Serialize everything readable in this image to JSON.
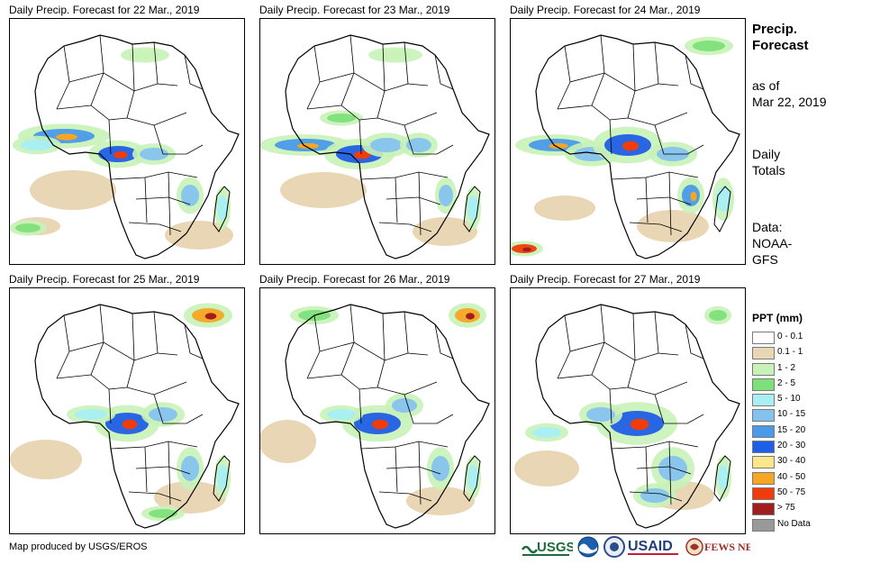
{
  "panels": [
    {
      "title": "Daily Precip. Forecast for 22 Mar., 2019"
    },
    {
      "title": "Daily Precip. Forecast for 23 Mar., 2019"
    },
    {
      "title": "Daily Precip. Forecast for 24 Mar., 2019"
    },
    {
      "title": "Daily Precip. Forecast for 25 Mar., 2019"
    },
    {
      "title": "Daily Precip. Forecast for 26 Mar., 2019"
    },
    {
      "title": "Daily Precip. Forecast for 27 Mar., 2019"
    }
  ],
  "sidebar": {
    "title_line1": "Precip.",
    "title_line2": "Forecast",
    "asof_line1": "as of",
    "asof_line2": "Mar 22, 2019",
    "totals_line1": "Daily",
    "totals_line2": "Totals",
    "data_line1": "Data:",
    "data_line2": "NOAA-",
    "data_line3": "GFS"
  },
  "legend": {
    "title": "PPT (mm)",
    "items": [
      {
        "label": "0 - 0.1",
        "color": "#ffffff"
      },
      {
        "label": "0.1 - 1",
        "color": "#e8d6b4"
      },
      {
        "label": "1 - 2",
        "color": "#c8f2b8"
      },
      {
        "label": "2 - 5",
        "color": "#7ee07a"
      },
      {
        "label": "5 - 10",
        "color": "#a8eef4"
      },
      {
        "label": "10 - 15",
        "color": "#86c2ee"
      },
      {
        "label": "15 - 20",
        "color": "#4a9ae8"
      },
      {
        "label": "20 - 30",
        "color": "#1f5ee6"
      },
      {
        "label": "30 - 40",
        "color": "#fce68a"
      },
      {
        "label": "40 - 50",
        "color": "#f5a623"
      },
      {
        "label": "50 - 75",
        "color": "#f03c0a"
      },
      {
        "label": "> 75",
        "color": "#a01e1e"
      },
      {
        "label": "No Data",
        "color": "#999999"
      }
    ]
  },
  "footer": {
    "credit": "Map produced by USGS/EROS",
    "logo_usgs": "USGS",
    "logo_usaid": "USAID",
    "logo_fews": "FEWS NET"
  },
  "colors": {
    "land_border": "#000000",
    "background": "#ffffff"
  }
}
